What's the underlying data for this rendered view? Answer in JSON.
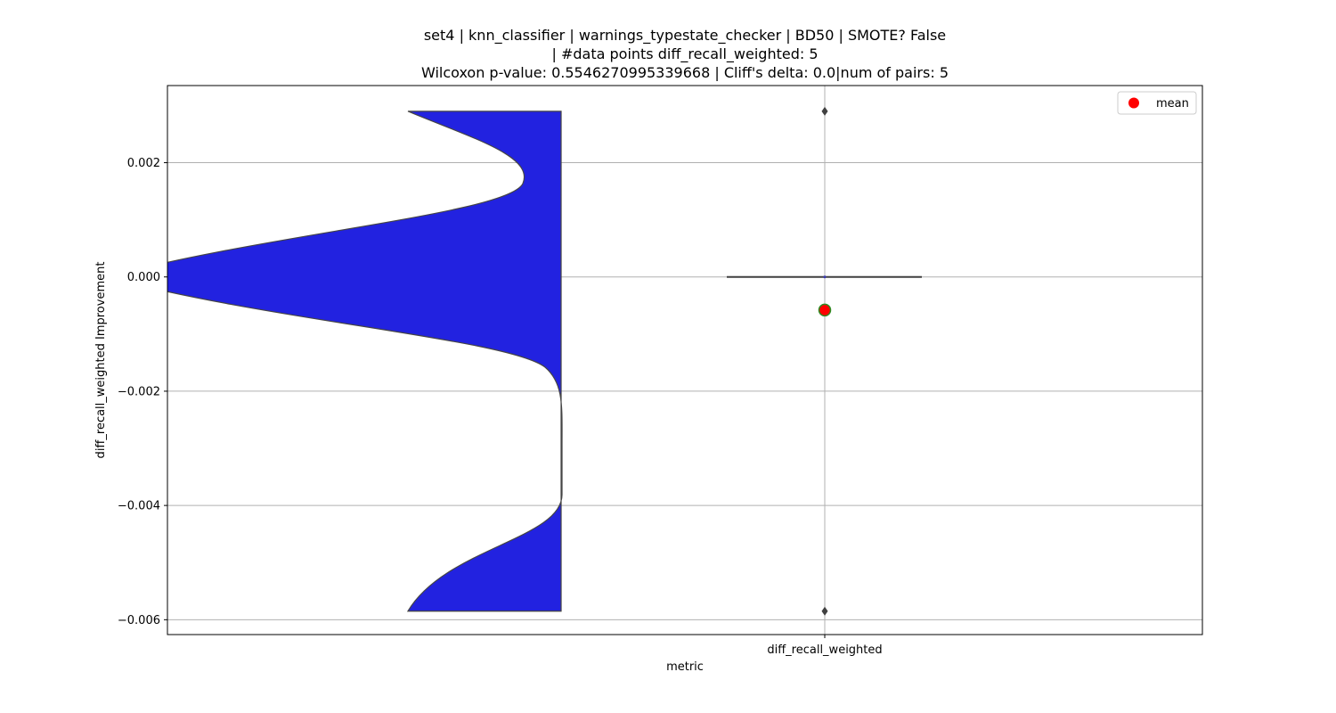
{
  "chart_data": {
    "type": "violin+box",
    "title_lines": [
      "set4 | knn_classifier | warnings_typestate_checker | BD50 | SMOTE? False",
      "| #data points diff_recall_weighted: 5",
      "Wilcoxon p-value: 0.5546270995339668 | Cliff's delta: 0.0|num of pairs: 5"
    ],
    "xlabel": "metric",
    "ylabel": "diff_recall_weighted Improvement",
    "categories": [
      "diff_recall_weighted"
    ],
    "ylim": [
      -0.00626,
      0.00335
    ],
    "yticks": [
      0.002,
      0.0,
      -0.002,
      -0.004,
      -0.006
    ],
    "ytick_labels": [
      "0.002",
      "0.000",
      "−0.002",
      "−0.004",
      "−0.006"
    ],
    "grid": true,
    "legend": {
      "placement": "top-right",
      "entries": [
        "mean"
      ]
    },
    "violin": {
      "color": "#2222e0",
      "y_min": -0.00585,
      "y_max": 0.0029
    },
    "box": {
      "q1": 0.0,
      "median": 0.0,
      "q3": 0.0,
      "whisker_low": 0.0,
      "whisker_high": 0.0,
      "outliers": [
        0.0029,
        -0.00585
      ]
    },
    "mean": -0.00058,
    "colors": {
      "mean_fill": "#ff0000",
      "mean_edge": "#2e8b22",
      "grid": "#b0b0b0",
      "box_line": "#404040"
    }
  }
}
